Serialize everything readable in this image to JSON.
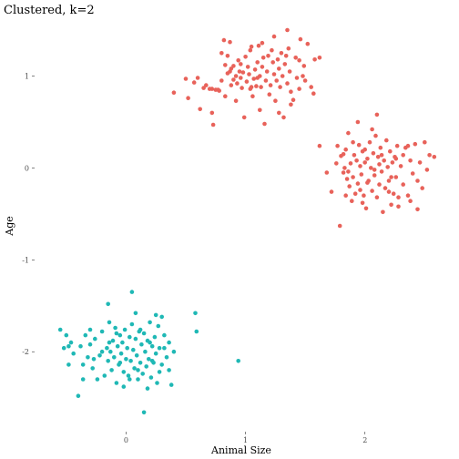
{
  "chart_data": {
    "type": "scatter",
    "title": "Clustered, k=2",
    "xlabel": "Animal Size",
    "ylabel": "Age",
    "xlim": [
      -0.75,
      2.65
    ],
    "ylim": [
      -2.85,
      1.55
    ],
    "xticks": [
      {
        "value": 0,
        "label": "0"
      },
      {
        "value": 1,
        "label": "1"
      },
      {
        "value": 2,
        "label": "2"
      }
    ],
    "yticks": [
      {
        "value": 1,
        "label": "1"
      },
      {
        "value": 0,
        "label": "0"
      },
      {
        "value": -1,
        "label": "-1"
      },
      {
        "value": -2,
        "label": "-2"
      }
    ],
    "grid": false,
    "legend": "none",
    "colors": {
      "cluster_1": "#E8625A",
      "cluster_2": "#1FB8B5"
    },
    "series": [
      {
        "color": "#E8625A",
        "points": [
          [
            0.4,
            0.82
          ],
          [
            0.5,
            0.97
          ],
          [
            0.52,
            0.76
          ],
          [
            0.57,
            0.93
          ],
          [
            0.6,
            0.98
          ],
          [
            0.62,
            0.64
          ],
          [
            0.65,
            0.87
          ],
          [
            0.67,
            0.9
          ],
          [
            0.7,
            0.86
          ],
          [
            0.72,
            0.6
          ],
          [
            0.72,
            0.86
          ],
          [
            0.73,
            0.47
          ],
          [
            0.75,
            0.85
          ],
          [
            0.77,
            0.85
          ],
          [
            0.78,
            0.84
          ],
          [
            0.8,
            1.25
          ],
          [
            0.8,
            0.95
          ],
          [
            0.82,
            1.39
          ],
          [
            0.83,
            1.12
          ],
          [
            0.83,
            0.78
          ],
          [
            0.85,
            1.03
          ],
          [
            0.85,
            1.22
          ],
          [
            0.87,
            1.37
          ],
          [
            0.87,
            1.05
          ],
          [
            0.88,
            0.9
          ],
          [
            0.9,
            0.96
          ],
          [
            0.9,
            1.11
          ],
          [
            0.92,
            1.0
          ],
          [
            0.92,
            0.73
          ],
          [
            0.93,
            0.92
          ],
          [
            0.94,
            1.17
          ],
          [
            0.95,
            1.05
          ],
          [
            0.96,
            0.98
          ],
          [
            0.97,
            0.87
          ],
          [
            0.98,
            1.04
          ],
          [
            0.99,
            0.55
          ],
          [
            1.0,
            1.21
          ],
          [
            1.01,
            0.94
          ],
          [
            1.02,
            1.1
          ],
          [
            1.03,
            1.02
          ],
          [
            1.04,
            1.28
          ],
          [
            1.04,
            0.86
          ],
          [
            1.05,
            1.32
          ],
          [
            1.06,
            0.78
          ],
          [
            1.07,
            0.97
          ],
          [
            1.08,
            1.07
          ],
          [
            1.09,
            0.89
          ],
          [
            1.1,
            1.15
          ],
          [
            1.1,
            0.98
          ],
          [
            1.11,
            1.33
          ],
          [
            1.12,
            1.0
          ],
          [
            1.12,
            0.63
          ],
          [
            1.13,
            0.88
          ],
          [
            1.14,
            1.1
          ],
          [
            1.15,
            1.2
          ],
          [
            1.16,
            0.48
          ],
          [
            1.17,
            0.95
          ],
          [
            1.18,
            1.05
          ],
          [
            1.19,
            1.22
          ],
          [
            1.2,
            0.8
          ],
          [
            1.21,
            0.9
          ],
          [
            1.22,
            1.28
          ],
          [
            1.23,
            1.15
          ],
          [
            1.24,
            1.02
          ],
          [
            1.25,
            0.73
          ],
          [
            1.26,
            0.95
          ],
          [
            1.27,
            1.18
          ],
          [
            1.28,
            1.08
          ],
          [
            1.29,
            0.88
          ],
          [
            1.3,
            1.25
          ],
          [
            1.31,
            1.0
          ],
          [
            1.32,
            0.55
          ],
          [
            1.33,
            1.13
          ],
          [
            1.34,
            1.22
          ],
          [
            1.35,
            0.92
          ],
          [
            1.36,
            1.3
          ],
          [
            1.37,
            1.05
          ],
          [
            1.38,
            0.83
          ],
          [
            1.4,
            0.74
          ],
          [
            1.42,
            1.2
          ],
          [
            1.43,
            0.98
          ],
          [
            1.45,
            1.17
          ],
          [
            1.46,
            1.4
          ],
          [
            1.48,
            1.0
          ],
          [
            1.49,
            1.11
          ],
          [
            1.5,
            0.95
          ],
          [
            1.52,
            1.35
          ],
          [
            1.55,
            0.88
          ],
          [
            1.57,
            0.81
          ],
          [
            1.58,
            1.18
          ],
          [
            1.35,
            1.5
          ],
          [
            1.62,
            1.2
          ],
          [
            1.38,
            0.69
          ],
          [
            1.28,
            0.6
          ],
          [
            1.05,
            0.88
          ],
          [
            0.96,
            1.13
          ],
          [
            1.14,
            1.36
          ],
          [
            1.24,
            1.43
          ],
          [
            0.88,
            1.08
          ],
          [
            1.45,
            0.86
          ],
          [
            1.77,
            0.24
          ],
          [
            1.79,
            -0.63
          ],
          [
            1.8,
            0.13
          ],
          [
            1.82,
            -0.05
          ],
          [
            1.83,
            0.0
          ],
          [
            1.84,
            0.2
          ],
          [
            1.85,
            -0.12
          ],
          [
            1.86,
            0.38
          ],
          [
            1.87,
            -0.2
          ],
          [
            1.88,
            0.05
          ],
          [
            1.89,
            -0.36
          ],
          [
            1.9,
            -0.1
          ],
          [
            1.91,
            0.14
          ],
          [
            1.92,
            -0.28
          ],
          [
            1.93,
            0.08
          ],
          [
            1.94,
            -0.17
          ],
          [
            1.95,
            0.25
          ],
          [
            1.96,
            0.02
          ],
          [
            1.97,
            -0.07
          ],
          [
            1.98,
            0.18
          ],
          [
            1.99,
            -0.3
          ],
          [
            2.0,
            0.06
          ],
          [
            2.01,
            -0.44
          ],
          [
            2.02,
            0.1
          ],
          [
            2.03,
            -0.14
          ],
          [
            2.04,
            0.28
          ],
          [
            2.05,
            0.0
          ],
          [
            2.06,
            -0.25
          ],
          [
            2.07,
            0.16
          ],
          [
            2.08,
            -0.08
          ],
          [
            2.09,
            0.35
          ],
          [
            2.1,
            -0.32
          ],
          [
            2.11,
            0.12
          ],
          [
            2.12,
            -0.18
          ],
          [
            2.13,
            0.22
          ],
          [
            2.14,
            -0.04
          ],
          [
            2.15,
            -0.48
          ],
          [
            2.16,
            0.08
          ],
          [
            2.17,
            -0.22
          ],
          [
            2.18,
            0.3
          ],
          [
            2.19,
            0.01
          ],
          [
            2.2,
            -0.14
          ],
          [
            2.21,
            0.18
          ],
          [
            2.22,
            -0.4
          ],
          [
            2.23,
            0.06
          ],
          [
            2.24,
            -0.28
          ],
          [
            2.25,
            0.12
          ],
          [
            2.26,
            -0.1
          ],
          [
            2.27,
            0.24
          ],
          [
            2.28,
            -0.42
          ],
          [
            2.3,
            0.02
          ],
          [
            2.32,
            -0.18
          ],
          [
            2.34,
            0.22
          ],
          [
            2.36,
            -0.3
          ],
          [
            2.38,
            0.08
          ],
          [
            2.4,
            -0.06
          ],
          [
            2.42,
            0.26
          ],
          [
            2.44,
            -0.14
          ],
          [
            2.46,
            0.06
          ],
          [
            2.48,
            -0.22
          ],
          [
            2.5,
            0.28
          ],
          [
            2.52,
            -0.02
          ],
          [
            2.54,
            0.14
          ],
          [
            2.58,
            0.12
          ],
          [
            1.72,
            -0.26
          ],
          [
            1.76,
            0.05
          ],
          [
            1.82,
            0.15
          ],
          [
            1.94,
            0.5
          ],
          [
            2.1,
            0.58
          ],
          [
            2.36,
            0.24
          ],
          [
            2.44,
            -0.45
          ],
          [
            1.86,
            -0.04
          ],
          [
            2.02,
            -0.16
          ],
          [
            2.12,
            0.04
          ],
          [
            2.22,
            -0.1
          ],
          [
            1.68,
            -0.05
          ],
          [
            1.62,
            0.24
          ],
          [
            2.06,
            0.42
          ],
          [
            2.28,
            -0.32
          ],
          [
            1.98,
            -0.38
          ],
          [
            2.14,
            0.14
          ],
          [
            1.9,
            0.28
          ],
          [
            2.26,
            0.1
          ],
          [
            2.38,
            -0.36
          ],
          [
            2.0,
            0.2
          ],
          [
            2.2,
            -0.26
          ],
          [
            1.96,
            -0.24
          ],
          [
            2.08,
            -0.02
          ],
          [
            2.32,
            0.14
          ],
          [
            1.84,
            -0.3
          ]
        ]
      },
      {
        "color": "#1FB8B5",
        "points": [
          [
            -0.55,
            -1.76
          ],
          [
            -0.52,
            -1.96
          ],
          [
            -0.5,
            -1.82
          ],
          [
            -0.48,
            -2.14
          ],
          [
            -0.46,
            -1.9
          ],
          [
            -0.44,
            -2.02
          ],
          [
            -0.4,
            -2.48
          ],
          [
            -0.38,
            -1.94
          ],
          [
            -0.36,
            -2.14
          ],
          [
            -0.34,
            -1.82
          ],
          [
            -0.32,
            -2.06
          ],
          [
            -0.3,
            -1.92
          ],
          [
            -0.28,
            -2.18
          ],
          [
            -0.26,
            -1.86
          ],
          [
            -0.24,
            -2.3
          ],
          [
            -0.22,
            -2.04
          ],
          [
            -0.2,
            -1.78
          ],
          [
            -0.18,
            -2.26
          ],
          [
            -0.16,
            -1.96
          ],
          [
            -0.15,
            -2.1
          ],
          [
            -0.14,
            -1.68
          ],
          [
            -0.13,
            -2.0
          ],
          [
            -0.12,
            -2.2
          ],
          [
            -0.11,
            -1.88
          ],
          [
            -0.1,
            -2.06
          ],
          [
            -0.09,
            -1.74
          ],
          [
            -0.08,
            -2.34
          ],
          [
            -0.07,
            -1.94
          ],
          [
            -0.06,
            -2.14
          ],
          [
            -0.05,
            -1.82
          ],
          [
            -0.04,
            -2.02
          ],
          [
            -0.03,
            -1.9
          ],
          [
            -0.02,
            -2.22
          ],
          [
            -0.01,
            -1.76
          ],
          [
            0.0,
            -2.08
          ],
          [
            0.01,
            -1.96
          ],
          [
            0.02,
            -2.26
          ],
          [
            0.03,
            -1.84
          ],
          [
            0.04,
            -2.1
          ],
          [
            0.05,
            -1.7
          ],
          [
            0.06,
            -1.98
          ],
          [
            0.07,
            -2.18
          ],
          [
            0.08,
            -1.86
          ],
          [
            0.09,
            -2.04
          ],
          [
            0.1,
            -2.3
          ],
          [
            0.11,
            -1.78
          ],
          [
            0.12,
            -2.12
          ],
          [
            0.13,
            -1.92
          ],
          [
            0.14,
            -2.24
          ],
          [
            0.15,
            -1.8
          ],
          [
            0.16,
            -2.0
          ],
          [
            0.17,
            -2.16
          ],
          [
            0.18,
            -1.88
          ],
          [
            0.19,
            -2.08
          ],
          [
            0.2,
            -1.68
          ],
          [
            0.21,
            -2.28
          ],
          [
            0.22,
            -1.94
          ],
          [
            0.23,
            -2.12
          ],
          [
            0.24,
            -1.84
          ],
          [
            0.25,
            -2.02
          ],
          [
            0.26,
            -2.34
          ],
          [
            0.27,
            -1.72
          ],
          [
            0.28,
            -1.96
          ],
          [
            0.3,
            -2.14
          ],
          [
            0.32,
            -1.82
          ],
          [
            0.34,
            -2.06
          ],
          [
            0.36,
            -1.9
          ],
          [
            0.38,
            -2.36
          ],
          [
            0.4,
            -2.0
          ],
          [
            0.05,
            -1.35
          ],
          [
            -0.15,
            -1.48
          ],
          [
            0.58,
            -1.58
          ],
          [
            0.59,
            -1.78
          ],
          [
            0.94,
            -2.1
          ],
          [
            0.15,
            -2.66
          ],
          [
            -0.02,
            -2.38
          ],
          [
            0.25,
            -1.6
          ],
          [
            -0.36,
            -2.3
          ],
          [
            0.08,
            -1.58
          ],
          [
            0.3,
            -1.62
          ],
          [
            -0.14,
            -1.9
          ],
          [
            0.18,
            -2.4
          ],
          [
            0.36,
            -2.2
          ],
          [
            0.03,
            -2.3
          ],
          [
            -0.27,
            -2.08
          ],
          [
            0.12,
            -1.76
          ],
          [
            0.28,
            -2.22
          ],
          [
            -0.2,
            -2.0
          ],
          [
            0.22,
            -2.1
          ],
          [
            -0.08,
            -1.8
          ],
          [
            -0.48,
            -1.94
          ],
          [
            0.1,
            -2.2
          ],
          [
            -0.3,
            -1.76
          ],
          [
            0.32,
            -1.96
          ],
          [
            -0.05,
            -2.12
          ],
          [
            0.2,
            -1.9
          ]
        ]
      }
    ]
  }
}
